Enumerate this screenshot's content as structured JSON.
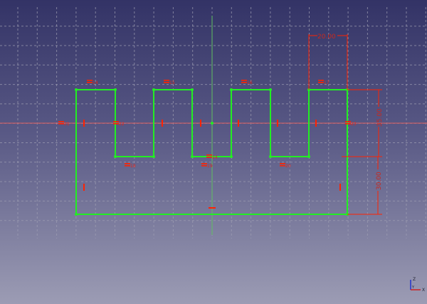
{
  "viewport": {
    "type": "sketch-3d-view",
    "background": [
      "#333366",
      "#9c9cb4"
    ]
  },
  "colors": {
    "geometry": "#22ee22",
    "constraint": "#ff2200",
    "x_axis": "#e05050",
    "y_axis": "#60c060",
    "grid": "#9a9aaa"
  },
  "dimensions": {
    "top_width": "20.00",
    "right_upper": "35.00",
    "right_lower": "30.00"
  },
  "constraint_labels": [
    "14",
    "15",
    "16",
    "17",
    "18",
    "19",
    "20",
    "21",
    "22",
    "23",
    "24"
  ],
  "axis_indicator": {
    "z": "Z",
    "y": "Y",
    "x": "X"
  }
}
